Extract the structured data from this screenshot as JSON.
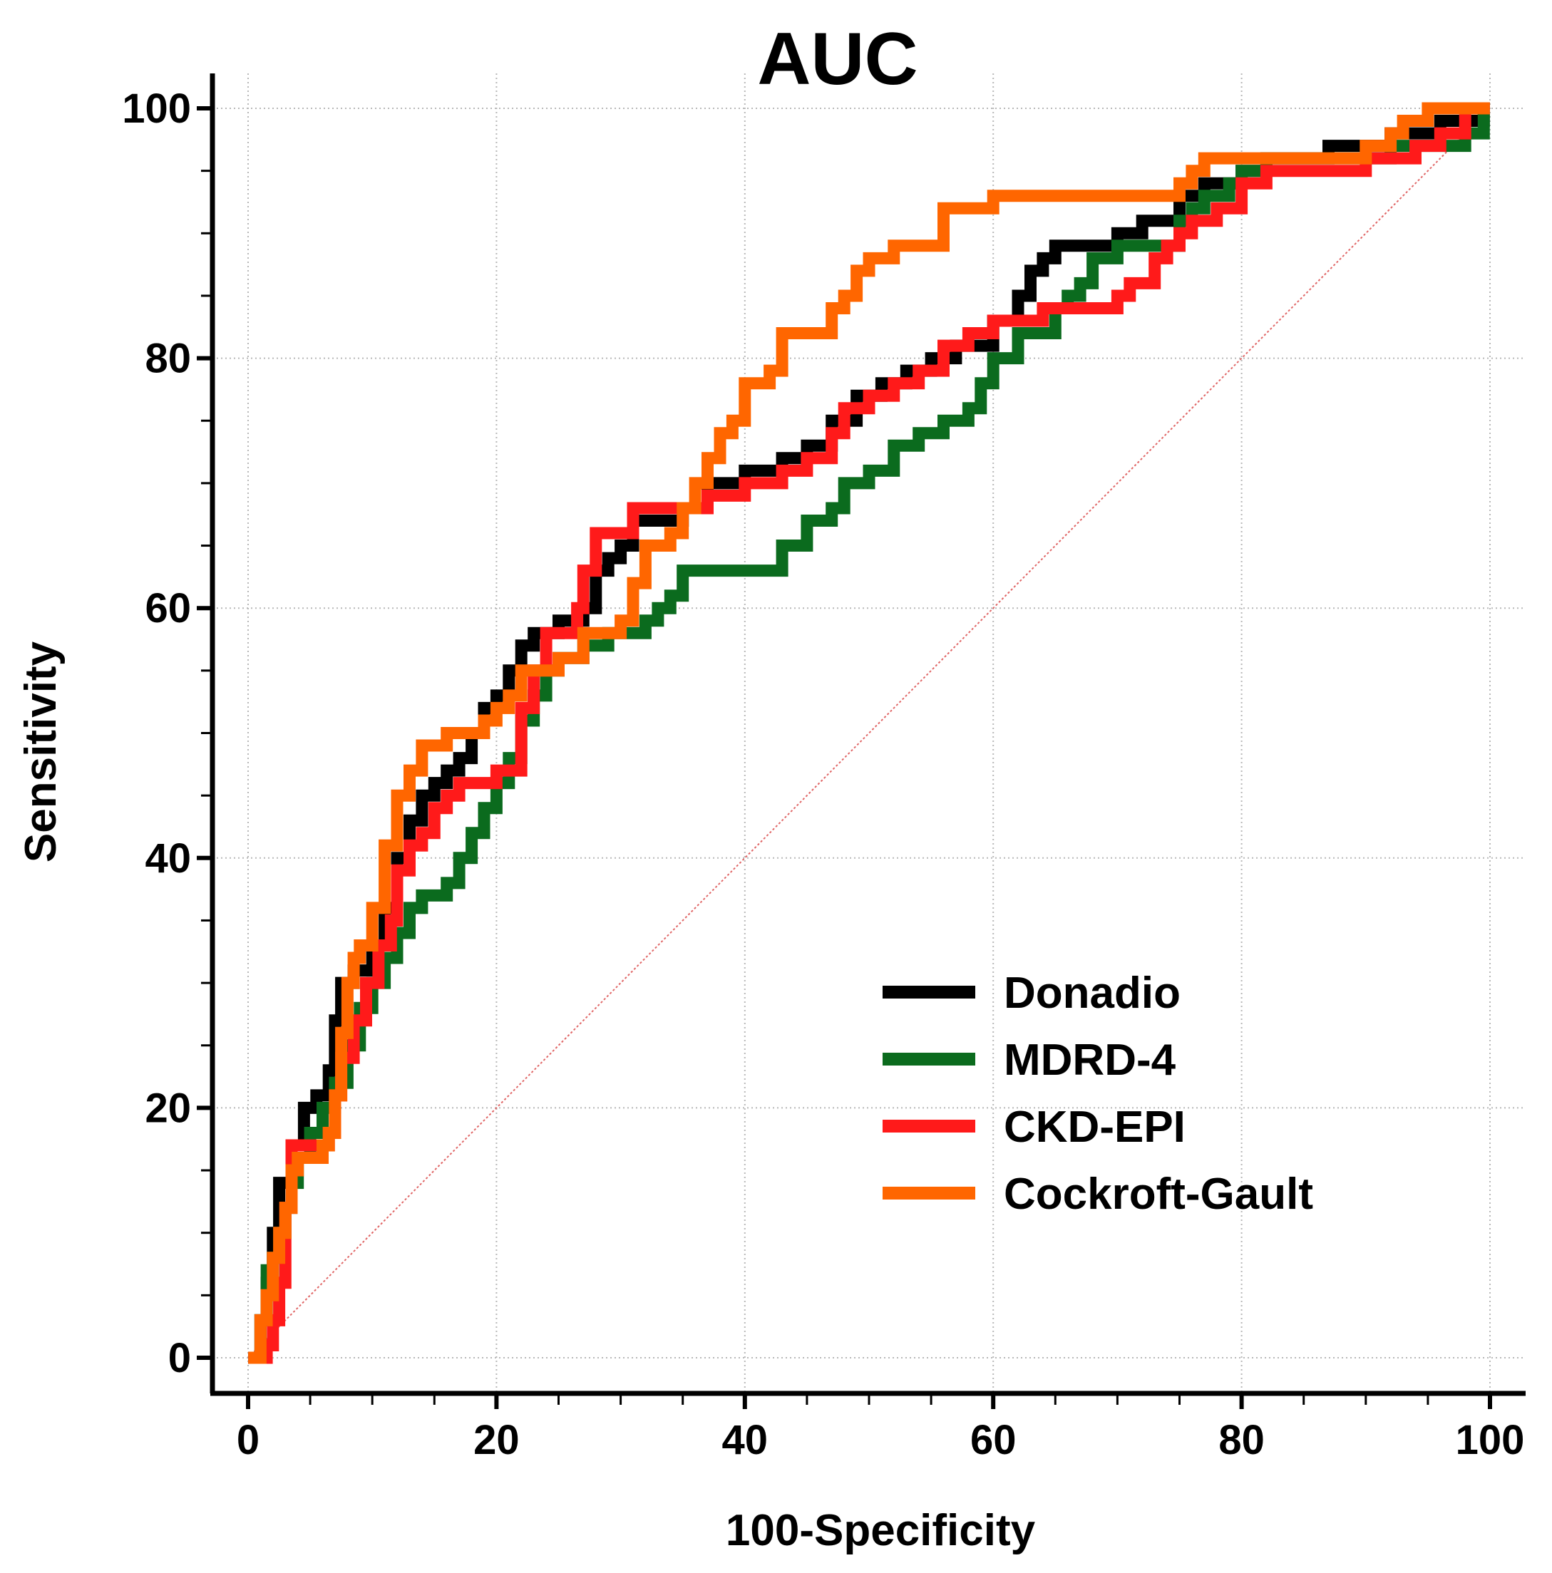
{
  "chart_data": {
    "type": "line",
    "title": "AUC",
    "xlabel": "100-Specificity",
    "ylabel": "Sensitivity",
    "xlim": [
      0,
      100
    ],
    "ylim": [
      0,
      100
    ],
    "xticks": [
      "0",
      "20",
      "40",
      "60",
      "80",
      "100"
    ],
    "yticks": [
      "0",
      "20",
      "40",
      "60",
      "80",
      "100"
    ],
    "grid": true,
    "legend_position": "bottom-right",
    "reference_line": {
      "x": [
        0,
        100
      ],
      "y": [
        0,
        100
      ],
      "color": "#e06666"
    },
    "series": [
      {
        "name": "Donadio",
        "color": "#000000",
        "x": [
          0.5,
          1,
          1.5,
          2,
          2.5,
          3,
          3.5,
          4.5,
          5.5,
          6.5,
          7,
          7.5,
          8.5,
          10,
          11,
          12,
          13,
          14,
          15,
          16,
          17,
          18,
          19,
          20,
          21,
          22,
          23,
          24,
          25,
          26,
          27,
          28,
          29,
          30,
          31,
          32,
          33,
          34,
          35,
          37,
          40,
          43,
          45,
          47,
          49,
          51,
          53,
          55,
          57,
          60,
          62,
          63,
          64,
          65,
          67,
          70,
          72,
          73,
          75,
          77,
          79,
          80,
          82,
          85,
          87,
          90,
          92,
          94,
          96,
          98,
          99.5
        ],
        "y": [
          0,
          3,
          6,
          10,
          14,
          14,
          17,
          20,
          21,
          23,
          27,
          30,
          31,
          33,
          36,
          40,
          43,
          45,
          46,
          47,
          48,
          50,
          52,
          53,
          55,
          57,
          58,
          58,
          59,
          59,
          60,
          63,
          64,
          65,
          67,
          67,
          67,
          67,
          68,
          70,
          71,
          72,
          73,
          75,
          77,
          78,
          79,
          80,
          81,
          83,
          85,
          87,
          88,
          89,
          89,
          90,
          91,
          91,
          93,
          94,
          94,
          95,
          96,
          96,
          97,
          97,
          98,
          98,
          99,
          99,
          100
        ]
      },
      {
        "name": "MDRD-4",
        "color": "#0b6b1e",
        "x": [
          0.5,
          1,
          1.5,
          2,
          2.5,
          3,
          3.5,
          4,
          5,
          6,
          7,
          8,
          9,
          10,
          11,
          12,
          13,
          14,
          15,
          16,
          17,
          18,
          19,
          20,
          21,
          22,
          23,
          24,
          25,
          26,
          27,
          28,
          29,
          30,
          31,
          32,
          33,
          34,
          35,
          37,
          40,
          42,
          43,
          45,
          47,
          48,
          50,
          52,
          54,
          56,
          58,
          59,
          60,
          62,
          63,
          65,
          66,
          67,
          68,
          70,
          72,
          73,
          75,
          76,
          77,
          79,
          80,
          82,
          84,
          86,
          88,
          90,
          92,
          94,
          96,
          98,
          99.5
        ],
        "y": [
          0,
          3,
          7,
          8,
          10,
          12,
          14,
          16,
          18,
          20,
          22,
          25,
          28,
          30,
          32,
          34,
          36,
          37,
          37,
          38,
          40,
          42,
          44,
          46,
          48,
          51,
          53,
          55,
          56,
          56,
          57,
          57,
          58,
          58,
          58,
          59,
          60,
          61,
          63,
          63,
          63,
          63,
          65,
          67,
          68,
          70,
          71,
          73,
          74,
          75,
          76,
          78,
          80,
          82,
          82,
          84,
          85,
          86,
          88,
          89,
          89,
          89,
          91,
          92,
          93,
          94,
          95,
          96,
          96,
          96,
          96,
          96,
          97,
          97,
          97,
          98,
          100
        ]
      },
      {
        "name": "CKD-EPI",
        "color": "#ff1a1a",
        "x": [
          0.5,
          1,
          1.5,
          2,
          2.5,
          3,
          3.5,
          4,
          5,
          6,
          6.5,
          7,
          7.5,
          8.5,
          9.5,
          10.5,
          11.5,
          12,
          13,
          14,
          15,
          16,
          17,
          18,
          19,
          20,
          21,
          22,
          23,
          24,
          25,
          26,
          26.5,
          27,
          28,
          29,
          30,
          31,
          33,
          35,
          37,
          40,
          43,
          45,
          47,
          48,
          50,
          52,
          54,
          56,
          58,
          60,
          62,
          64,
          66,
          68,
          70,
          71,
          72,
          73,
          74,
          75,
          76,
          77,
          78,
          79,
          80,
          82,
          84,
          86,
          88,
          90,
          92,
          94,
          96,
          98,
          99.5
        ],
        "y": [
          0,
          0,
          1,
          3,
          6,
          12,
          17,
          17,
          17,
          17,
          18,
          21,
          24,
          27,
          30,
          33,
          35,
          39,
          41,
          42,
          44,
          45,
          46,
          46,
          46,
          47,
          47,
          52,
          55,
          58,
          58,
          58,
          60,
          63,
          66,
          66,
          66,
          68,
          68,
          68,
          69,
          70,
          71,
          72,
          74,
          76,
          77,
          78,
          79,
          81,
          82,
          83,
          83,
          84,
          84,
          84,
          85,
          86,
          86,
          88,
          89,
          90,
          91,
          91,
          92,
          92,
          94,
          95,
          95,
          95,
          95,
          96,
          96,
          97,
          98,
          100,
          100
        ]
      },
      {
        "name": "Cockroft-Gault",
        "color": "#ff6600",
        "x": [
          0.5,
          1,
          1.5,
          2,
          2.5,
          3,
          3.5,
          4,
          5,
          6,
          6.5,
          7,
          7.5,
          8,
          8.5,
          9,
          10,
          11,
          12,
          13,
          14,
          15,
          16,
          17,
          18,
          19,
          20,
          21,
          22,
          23,
          25,
          27,
          29,
          30,
          31,
          32,
          34,
          35,
          36,
          37,
          38,
          39,
          40,
          42,
          43,
          45,
          47,
          48,
          49,
          50,
          52,
          55,
          56,
          58,
          60,
          62,
          64,
          66,
          68,
          70,
          72,
          74,
          75,
          76,
          77,
          78,
          80,
          82,
          85,
          88,
          90,
          92,
          93,
          95,
          97,
          99.5
        ],
        "y": [
          0,
          3,
          5,
          8,
          10,
          12,
          15,
          16,
          16,
          17,
          18,
          21,
          26,
          30,
          32,
          33,
          36,
          41,
          45,
          47,
          49,
          49,
          50,
          50,
          50,
          51,
          52,
          53,
          55,
          55,
          56,
          58,
          58,
          59,
          62,
          65,
          66,
          68,
          70,
          72,
          74,
          75,
          78,
          79,
          82,
          82,
          84,
          85,
          87,
          88,
          89,
          89,
          92,
          92,
          93,
          93,
          93,
          93,
          93,
          93,
          93,
          93,
          94,
          95,
          96,
          96,
          96,
          96,
          96,
          96,
          97,
          98,
          99,
          100,
          100,
          100
        ]
      }
    ]
  }
}
